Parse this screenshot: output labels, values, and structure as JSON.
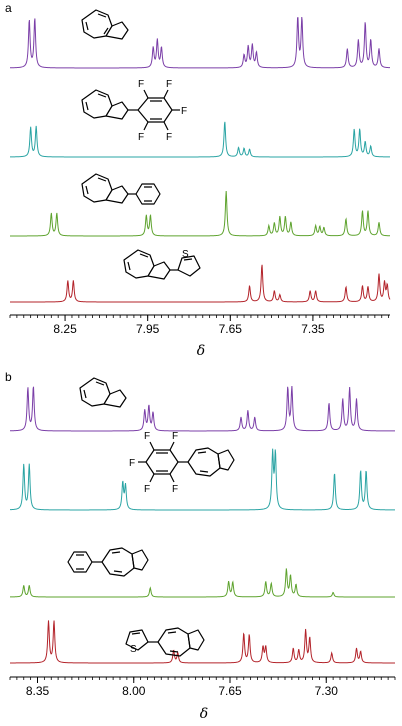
{
  "panels": [
    {
      "label": "a",
      "xticks": [
        "8.25",
        "7.95",
        "7.65",
        "7.35"
      ]
    },
    {
      "label": "b",
      "xticks": [
        "8.35",
        "8.00",
        "7.65",
        "7.30"
      ]
    }
  ],
  "xlabel": "δ",
  "structure_atoms": {
    "F": "F",
    "S": "S"
  },
  "colors": {
    "purple": "#7b3fa8",
    "teal": "#2aa4a4",
    "green": "#5ea32e",
    "red": "#b3232a"
  },
  "chart_data": [
    {
      "type": "line",
      "panel": "a",
      "xlabel": "δ",
      "xlim": [
        8.45,
        7.07
      ],
      "x_reversed": true,
      "xticks": [
        8.25,
        7.95,
        7.65,
        7.35
      ],
      "series": [
        {
          "color": "#7b3fa8",
          "compound": "azulene",
          "peaks": [
            {
              "x": 8.38,
              "h": 0.95
            },
            {
              "x": 8.36,
              "h": 0.98
            },
            {
              "x": 7.93,
              "h": 0.4
            },
            {
              "x": 7.915,
              "h": 0.55
            },
            {
              "x": 7.9,
              "h": 0.4
            },
            {
              "x": 7.6,
              "h": 0.25
            },
            {
              "x": 7.585,
              "h": 0.42
            },
            {
              "x": 7.57,
              "h": 0.45
            },
            {
              "x": 7.555,
              "h": 0.3
            },
            {
              "x": 7.405,
              "h": 1.0
            },
            {
              "x": 7.39,
              "h": 0.98
            },
            {
              "x": 7.225,
              "h": 0.38
            },
            {
              "x": 7.185,
              "h": 0.55
            },
            {
              "x": 7.16,
              "h": 0.9
            },
            {
              "x": 7.14,
              "h": 0.55
            },
            {
              "x": 7.11,
              "h": 0.38
            }
          ]
        },
        {
          "color": "#2aa4a4",
          "compound": "2-(pentafluorophenyl)azulene",
          "peaks": [
            {
              "x": 8.375,
              "h": 0.7
            },
            {
              "x": 8.355,
              "h": 0.72
            },
            {
              "x": 7.67,
              "h": 0.85
            },
            {
              "x": 7.62,
              "h": 0.22
            },
            {
              "x": 7.6,
              "h": 0.2
            },
            {
              "x": 7.58,
              "h": 0.18
            },
            {
              "x": 7.2,
              "h": 0.65
            },
            {
              "x": 7.18,
              "h": 0.65
            },
            {
              "x": 7.16,
              "h": 0.35
            },
            {
              "x": 7.14,
              "h": 0.25
            }
          ]
        },
        {
          "color": "#5ea32e",
          "compound": "2-phenylazulene",
          "peaks": [
            {
              "x": 8.3,
              "h": 0.5
            },
            {
              "x": 8.28,
              "h": 0.5
            },
            {
              "x": 7.955,
              "h": 0.45
            },
            {
              "x": 7.94,
              "h": 0.45
            },
            {
              "x": 7.665,
              "h": 1.0
            },
            {
              "x": 7.51,
              "h": 0.22
            },
            {
              "x": 7.49,
              "h": 0.28
            },
            {
              "x": 7.47,
              "h": 0.42
            },
            {
              "x": 7.45,
              "h": 0.42
            },
            {
              "x": 7.43,
              "h": 0.3
            },
            {
              "x": 7.34,
              "h": 0.22
            },
            {
              "x": 7.325,
              "h": 0.2
            },
            {
              "x": 7.31,
              "h": 0.18
            },
            {
              "x": 7.23,
              "h": 0.38
            },
            {
              "x": 7.17,
              "h": 0.55
            },
            {
              "x": 7.15,
              "h": 0.55
            },
            {
              "x": 7.11,
              "h": 0.3
            }
          ]
        },
        {
          "color": "#b3232a",
          "compound": "2-(2-thienyl)azulene",
          "peaks": [
            {
              "x": 8.24,
              "h": 0.42
            },
            {
              "x": 8.22,
              "h": 0.42
            },
            {
              "x": 7.535,
              "h": 0.75
            },
            {
              "x": 7.58,
              "h": 0.32
            },
            {
              "x": 7.49,
              "h": 0.22
            },
            {
              "x": 7.47,
              "h": 0.14
            },
            {
              "x": 7.36,
              "h": 0.22
            },
            {
              "x": 7.34,
              "h": 0.22
            },
            {
              "x": 7.23,
              "h": 0.3
            },
            {
              "x": 7.17,
              "h": 0.32
            },
            {
              "x": 7.15,
              "h": 0.3
            },
            {
              "x": 7.11,
              "h": 0.55
            },
            {
              "x": 7.09,
              "h": 0.38
            },
            {
              "x": 7.08,
              "h": 0.32
            }
          ]
        }
      ]
    },
    {
      "type": "line",
      "panel": "b",
      "xlabel": "δ",
      "xlim": [
        8.45,
        7.05
      ],
      "x_reversed": true,
      "xticks": [
        8.35,
        8.0,
        7.65,
        7.3
      ],
      "series": [
        {
          "color": "#7b3fa8",
          "compound": "azulene",
          "peaks": [
            {
              "x": 8.385,
              "h": 0.95
            },
            {
              "x": 8.365,
              "h": 0.98
            },
            {
              "x": 7.96,
              "h": 0.45
            },
            {
              "x": 7.945,
              "h": 0.55
            },
            {
              "x": 7.93,
              "h": 0.4
            },
            {
              "x": 7.61,
              "h": 0.3
            },
            {
              "x": 7.585,
              "h": 0.45
            },
            {
              "x": 7.56,
              "h": 0.3
            },
            {
              "x": 7.44,
              "h": 0.95
            },
            {
              "x": 7.425,
              "h": 0.95
            },
            {
              "x": 7.29,
              "h": 0.62
            },
            {
              "x": 7.24,
              "h": 0.7
            },
            {
              "x": 7.215,
              "h": 0.95
            },
            {
              "x": 7.19,
              "h": 0.7
            }
          ]
        },
        {
          "color": "#2aa4a4",
          "compound": "6-(pentafluorophenyl)azulene",
          "peaks": [
            {
              "x": 8.4,
              "h": 0.75
            },
            {
              "x": 8.38,
              "h": 0.75
            },
            {
              "x": 8.04,
              "h": 0.45
            },
            {
              "x": 8.03,
              "h": 0.4
            },
            {
              "x": 7.495,
              "h": 0.92
            },
            {
              "x": 7.485,
              "h": 0.92
            },
            {
              "x": 7.27,
              "h": 0.62
            },
            {
              "x": 7.175,
              "h": 0.65
            },
            {
              "x": 7.155,
              "h": 0.65
            }
          ]
        },
        {
          "color": "#5ea32e",
          "compound": "6-phenylazulene",
          "peaks": [
            {
              "x": 8.4,
              "h": 0.3
            },
            {
              "x": 8.38,
              "h": 0.3
            },
            {
              "x": 7.94,
              "h": 0.24
            },
            {
              "x": 7.655,
              "h": 0.4
            },
            {
              "x": 7.64,
              "h": 0.38
            },
            {
              "x": 7.52,
              "h": 0.4
            },
            {
              "x": 7.5,
              "h": 0.35
            },
            {
              "x": 7.445,
              "h": 0.72
            },
            {
              "x": 7.43,
              "h": 0.55
            },
            {
              "x": 7.41,
              "h": 0.32
            },
            {
              "x": 7.275,
              "h": 0.12
            }
          ]
        },
        {
          "color": "#b3232a",
          "compound": "6-(2-thienyl)azulene",
          "peaks": [
            {
              "x": 8.31,
              "h": 0.92
            },
            {
              "x": 8.29,
              "h": 0.92
            },
            {
              "x": 7.855,
              "h": 0.28
            },
            {
              "x": 7.84,
              "h": 0.22
            },
            {
              "x": 7.6,
              "h": 0.65
            },
            {
              "x": 7.58,
              "h": 0.62
            },
            {
              "x": 7.53,
              "h": 0.35
            },
            {
              "x": 7.52,
              "h": 0.35
            },
            {
              "x": 7.42,
              "h": 0.32
            },
            {
              "x": 7.4,
              "h": 0.28
            },
            {
              "x": 7.375,
              "h": 0.72
            },
            {
              "x": 7.36,
              "h": 0.55
            },
            {
              "x": 7.28,
              "h": 0.22
            },
            {
              "x": 7.19,
              "h": 0.32
            },
            {
              "x": 7.175,
              "h": 0.25
            }
          ]
        }
      ]
    }
  ]
}
